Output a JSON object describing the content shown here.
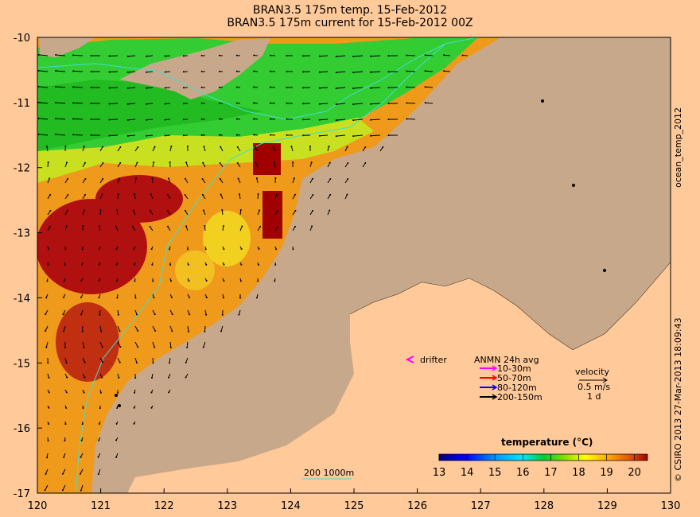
{
  "header": {
    "title_line1": "BRAN3.5 175m temp. 15-Feb-2012",
    "title_line2": "BRAN3.5 175m current for 15-Feb-2012 00Z"
  },
  "axes": {
    "x_ticks": [
      "120",
      "121",
      "122",
      "123",
      "124",
      "125",
      "126",
      "127",
      "128",
      "129",
      "130"
    ],
    "y_ticks": [
      "-10",
      "-11",
      "-12",
      "-13",
      "-14",
      "-15",
      "-16",
      "-17"
    ]
  },
  "legend": {
    "drifter_label": "drifter",
    "anmn_title": "ANMN 24h avg",
    "anmn_items": [
      {
        "label": "10-30m",
        "color": "#ff00ff"
      },
      {
        "label": "50-70m",
        "color": "#ff0000"
      },
      {
        "label": "80-120m",
        "color": "#0000ff"
      },
      {
        "label": "200-150m",
        "color": "#000000"
      }
    ],
    "velocity_title": "velocity",
    "velocity_scale": "0.5 m/s",
    "velocity_time": "1 d",
    "bathy_label": "200  1000m"
  },
  "colorbar": {
    "title": "temperature (°C)",
    "ticks": [
      "13",
      "14",
      "15",
      "16",
      "17",
      "18",
      "19",
      "20"
    ]
  },
  "side_text": {
    "right_top": "ocean_temp_2012",
    "right_bottom": "© CSIRO 2013   27-Mar-2013 18:09:43"
  },
  "colors": {
    "land": "#c8a88a",
    "background": "#ffc999",
    "isobath": "#40e0d0"
  }
}
